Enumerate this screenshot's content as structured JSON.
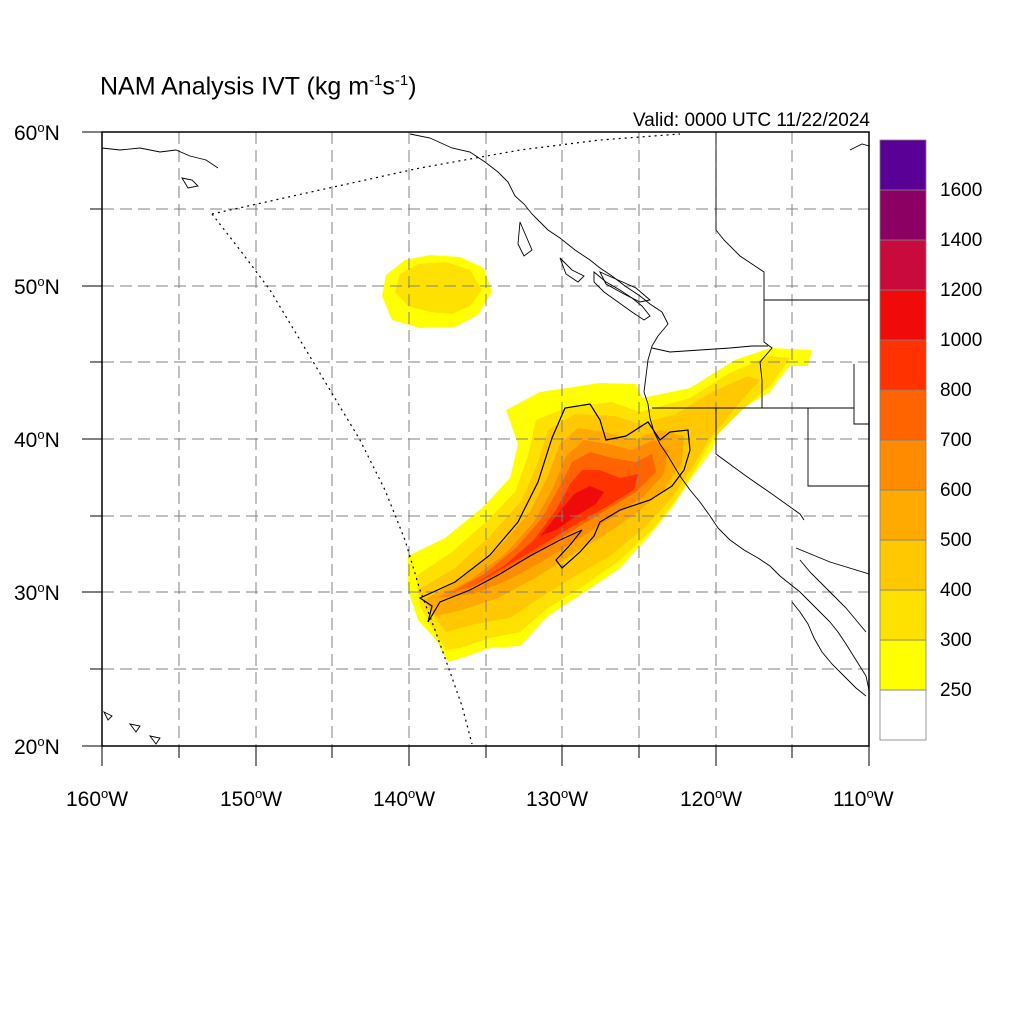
{
  "title": {
    "main": "NAM Analysis IVT (kg m",
    "unit_exp1": "-1",
    "mid": "s",
    "unit_exp2": "-1",
    "close": ")"
  },
  "valid_text": "Valid: 0000 UTC 11/22/2024",
  "map": {
    "lat_range": [
      20,
      60
    ],
    "lon_range": [
      -160,
      -110
    ],
    "lat_labels": [
      {
        "n": "60",
        "suffix": "N"
      },
      {
        "n": "50",
        "suffix": "N"
      },
      {
        "n": "40",
        "suffix": "N"
      },
      {
        "n": "30",
        "suffix": "N"
      },
      {
        "n": "20",
        "suffix": "N"
      }
    ],
    "lon_labels": [
      {
        "n": "160",
        "suffix": "W"
      },
      {
        "n": "150",
        "suffix": "W"
      },
      {
        "n": "140",
        "suffix": "W"
      },
      {
        "n": "130",
        "suffix": "W"
      },
      {
        "n": "120",
        "suffix": "W"
      },
      {
        "n": "110",
        "suffix": "W"
      }
    ],
    "grid_interval_deg": 5,
    "grid_style": "dashed"
  },
  "colorbar": {
    "labels": [
      "1600",
      "1400",
      "1200",
      "1000",
      "800",
      "700",
      "600",
      "500",
      "400",
      "300",
      "250"
    ],
    "colors": [
      "#ffffff",
      "#ffff00",
      "#ffe100",
      "#ffc800",
      "#ffaa00",
      "#ff8c00",
      "#ff6400",
      "#ff3200",
      "#f00a0a",
      "#c80a3c",
      "#8c0064",
      "#5a0096"
    ]
  }
}
